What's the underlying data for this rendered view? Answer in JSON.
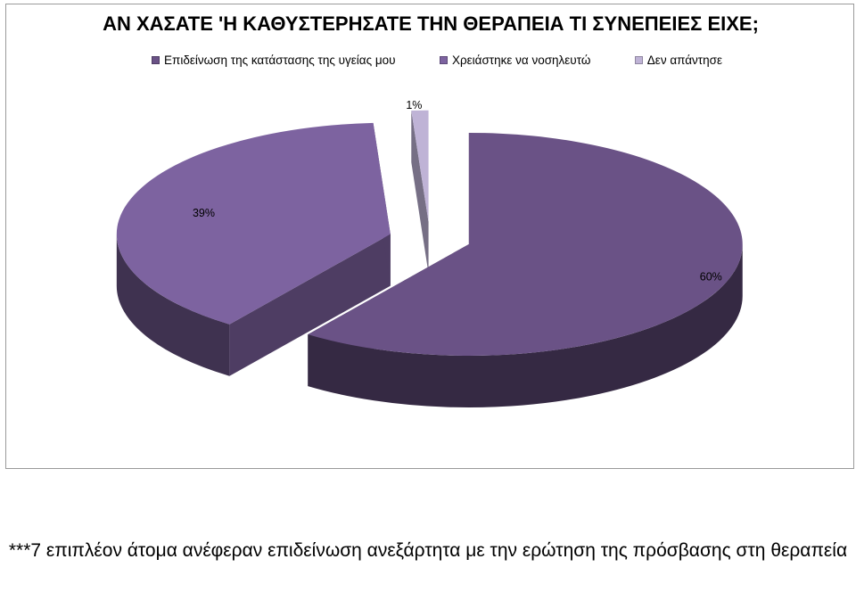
{
  "chart_data": {
    "type": "pie",
    "title": "ΑΝ ΧΑΣΑΤΕ 'Η ΚΑΘΥΣΤΕΡΗΣΑΤΕ ΤΗΝ ΘΕΡΑΠΕΙΑ ΤΙ ΣΥΝΕΠΕΙΕΣ ΕΙΧΕ;",
    "legend_position": "top",
    "slices": [
      {
        "name": "Επιδείνωση της κατάστασης της υγείας μου",
        "value": 60,
        "label": "60%",
        "color": "#6a5286"
      },
      {
        "name": "Χρειάστηκε να νοσηλευτώ",
        "value": 39,
        "label": "39%",
        "color": "#7d63a0"
      },
      {
        "name": "Δεν απάντησε",
        "value": 1,
        "label": "1%",
        "color": "#bfb3d6"
      }
    ]
  },
  "footnote": "***7 επιπλέον  άτομα  ανέφεραν επιδείνωση ανεξάρτητα με την ερώτηση της πρόσβασης στη θεραπεία"
}
